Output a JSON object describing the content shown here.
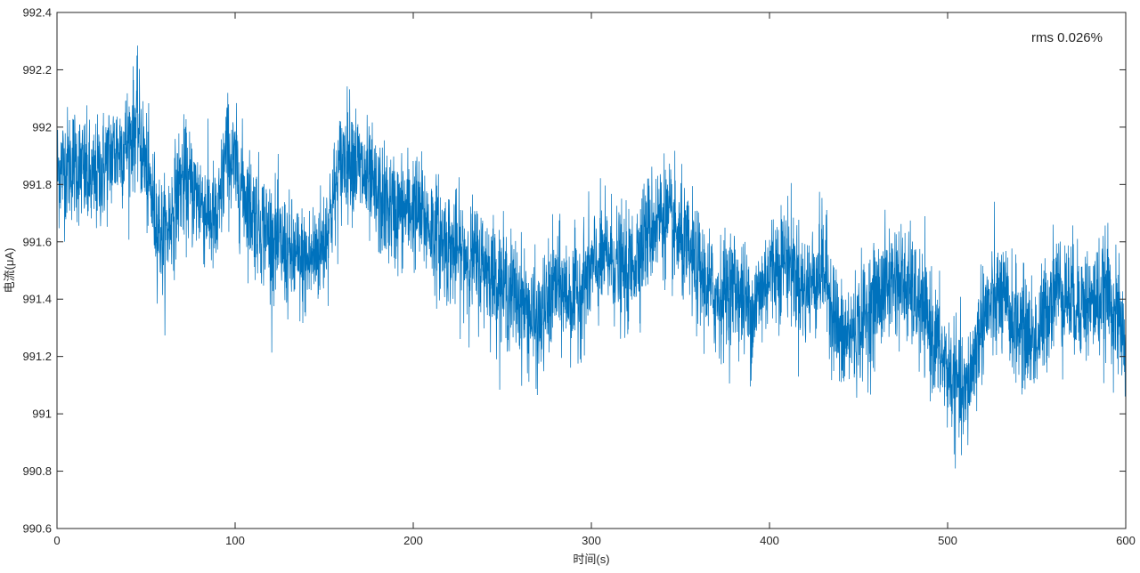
{
  "chart_data": {
    "type": "line",
    "title": "",
    "xlabel": "时间(s)",
    "ylabel": "电流(μA)",
    "xlim": [
      0,
      600
    ],
    "ylim": [
      990.6,
      992.4
    ],
    "xticks": [
      0,
      100,
      200,
      300,
      400,
      500,
      600
    ],
    "xtick_labels": [
      "0",
      "100",
      "200",
      "300",
      "400",
      "500",
      "600"
    ],
    "yticks": [
      990.6,
      990.8,
      991,
      991.2,
      991.4,
      991.6,
      991.8,
      992,
      992.2,
      992.4
    ],
    "ytick_labels": [
      "990.6",
      "990.8",
      "991",
      "991.2",
      "991.4",
      "991.6",
      "991.8",
      "992",
      "992.2",
      "992.4"
    ],
    "grid": false,
    "annotation": "rms 0.026%",
    "line_color": "#0072BD",
    "series": [
      {
        "x": [
          0,
          10,
          20,
          30,
          40,
          45,
          50,
          55,
          60,
          70,
          80,
          90,
          95,
          100,
          110,
          120,
          130,
          140,
          150,
          160,
          165,
          170,
          180,
          190,
          200,
          210,
          220,
          230,
          240,
          250,
          260,
          270,
          280,
          290,
          300,
          310,
          320,
          330,
          340,
          350,
          360,
          370,
          380,
          390,
          400,
          410,
          420,
          430,
          440,
          450,
          460,
          470,
          480,
          490,
          500,
          510,
          520,
          530,
          540,
          550,
          560,
          570,
          580,
          590,
          600
        ],
        "values": [
          991.85,
          991.88,
          991.8,
          991.9,
          991.95,
          992.02,
          991.85,
          991.7,
          991.6,
          991.82,
          991.75,
          991.65,
          991.92,
          991.85,
          991.7,
          991.62,
          991.55,
          991.52,
          991.6,
          991.88,
          991.92,
          991.85,
          991.75,
          991.7,
          991.72,
          991.65,
          991.58,
          991.55,
          991.52,
          991.45,
          991.4,
          991.3,
          991.45,
          991.4,
          991.5,
          991.55,
          991.48,
          991.62,
          991.7,
          991.6,
          991.5,
          991.4,
          991.45,
          991.35,
          991.5,
          991.55,
          991.42,
          991.52,
          991.25,
          991.3,
          991.4,
          991.48,
          991.42,
          991.3,
          991.15,
          991.05,
          991.35,
          991.4,
          991.3,
          991.25,
          991.45,
          991.4,
          991.38,
          991.42,
          991.25
        ]
      }
    ]
  }
}
